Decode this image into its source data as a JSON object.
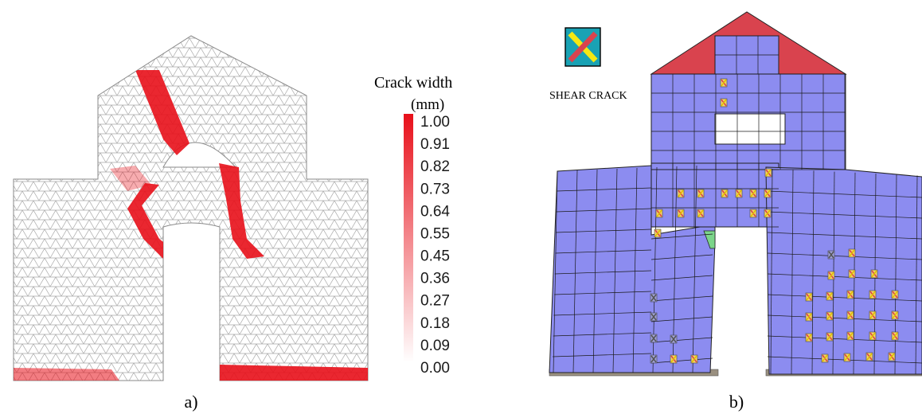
{
  "panel_a": {
    "caption": "a)",
    "legend": {
      "title_line1": "Crack width",
      "title_line2": "(mm)",
      "ticks": [
        "1.00",
        "0.91",
        "0.82",
        "0.73",
        "0.64",
        "0.55",
        "0.45",
        "0.36",
        "0.27",
        "0.18",
        "0.09",
        "0.00"
      ],
      "color_max": "#e8101a",
      "color_min": "#ffffff"
    },
    "mesh_color": "#a9a9a9",
    "crack_color": "#e8101a"
  },
  "panel_b": {
    "caption": "b)",
    "legend": {
      "icon": "shear-crack-icon",
      "label": "SHEAR CRACK"
    },
    "wall_color": "#8c8cf0",
    "roof_color": "#d9434e",
    "ground_color": "#9a9080",
    "opening_outline_color": "#000000"
  }
}
